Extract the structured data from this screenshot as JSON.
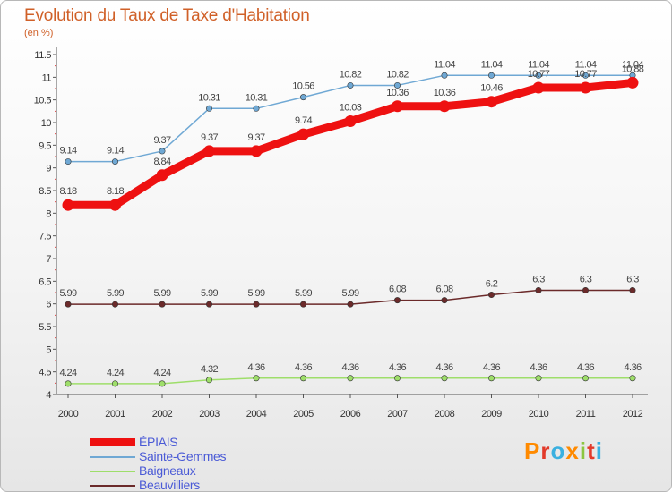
{
  "header": {
    "title": "Evolution du Taux de Taxe d'Habitation",
    "subtitle": "(en %)"
  },
  "brand": {
    "letters": [
      "P",
      "r",
      "o",
      "x",
      "i",
      "t",
      "i"
    ],
    "colors": [
      "#ff8a00",
      "#e23a2a",
      "#3ab0e0",
      "#ff8a00",
      "#8cc63f",
      "#e23a2a",
      "#3ab0e0"
    ]
  },
  "chart_data": {
    "type": "line",
    "title": "Evolution du Taux de Taxe d'Habitation",
    "subtitle": "(en %)",
    "x": [
      "2000",
      "2001",
      "2002",
      "2003",
      "2004",
      "2005",
      "2006",
      "2007",
      "2008",
      "2009",
      "2010",
      "2011",
      "2012"
    ],
    "ylim": [
      4,
      11.5
    ],
    "yticks": [
      "4",
      "4.5",
      "5",
      "5.5",
      "6",
      "6.5",
      "7",
      "7.5",
      "8",
      "8.5",
      "9",
      "9.5",
      "10",
      "10.5",
      "11",
      "11.5"
    ],
    "grid": false,
    "legend_position": "bottom-left",
    "series": [
      {
        "name": "Sainte-Gemmes",
        "color": "#6fa8d4",
        "values": [
          9.14,
          9.14,
          9.37,
          10.31,
          10.31,
          10.56,
          10.82,
          10.82,
          11.04,
          11.04,
          11.04,
          11.04,
          11.04
        ],
        "labels": [
          "9.14",
          "9.14",
          "9.37",
          "10.31",
          "10.31",
          "10.56",
          "10.82",
          "10.82",
          "11.04",
          "11.04",
          "11.04",
          "11.04",
          "11.04"
        ]
      },
      {
        "name": "Beauvilliers",
        "color": "#6b2a2a",
        "values": [
          5.99,
          5.99,
          5.99,
          5.99,
          5.99,
          5.99,
          5.99,
          6.08,
          6.08,
          6.2,
          6.3,
          6.3,
          6.3
        ],
        "labels": [
          "5.99",
          "5.99",
          "5.99",
          "5.99",
          "5.99",
          "5.99",
          "5.99",
          "6.08",
          "6.08",
          "6.2",
          "6.3",
          "6.3",
          "6.3"
        ]
      },
      {
        "name": "Baigneaux",
        "color": "#9ede6a",
        "values": [
          4.24,
          4.24,
          4.24,
          4.32,
          4.36,
          4.36,
          4.36,
          4.36,
          4.36,
          4.36,
          4.36,
          4.36,
          4.36
        ],
        "labels": [
          "4.24",
          "4.24",
          "4.24",
          "4.32",
          "4.36",
          "4.36",
          "4.36",
          "4.36",
          "4.36",
          "4.36",
          "4.36",
          "4.36",
          "4.36"
        ]
      },
      {
        "name": "ÉPIAIS",
        "color": "#ee1111",
        "values": [
          8.18,
          8.18,
          8.84,
          9.37,
          9.37,
          9.74,
          10.03,
          10.36,
          10.36,
          10.46,
          10.77,
          10.77,
          10.88
        ],
        "labels": [
          "8.18",
          "8.18",
          "8.84",
          "9.37",
          "9.37",
          "9.74",
          "10.03",
          "10.36",
          "10.36",
          "10.46",
          "10.77",
          "10.77",
          "10.88"
        ]
      }
    ],
    "legend": [
      "ÉPIAIS",
      "Sainte-Gemmes",
      "Baigneaux",
      "Beauvilliers"
    ]
  }
}
